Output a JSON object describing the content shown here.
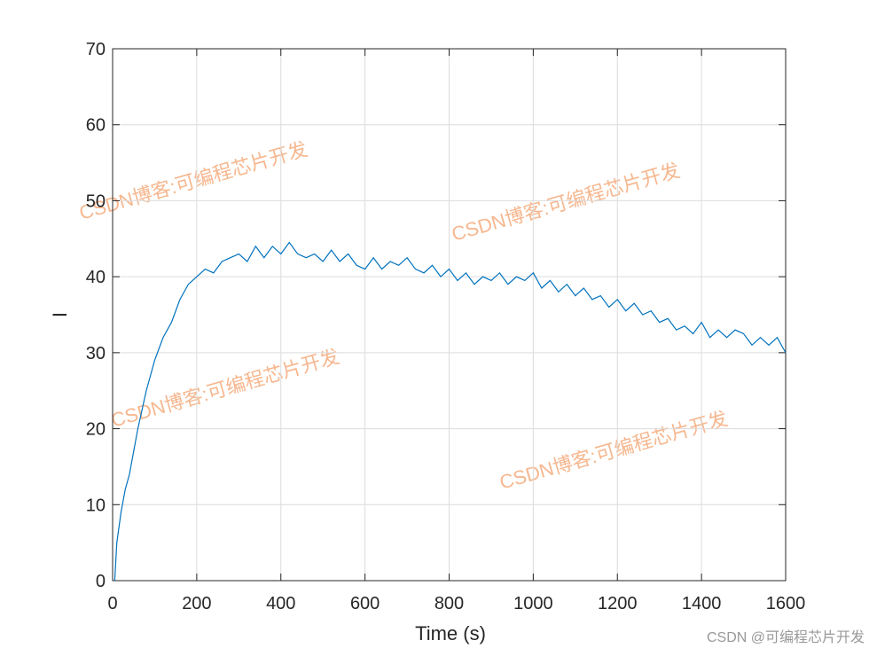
{
  "chart_data": {
    "type": "line",
    "xlabel": "Time (s)",
    "ylabel": "I",
    "x": [
      5,
      10,
      20,
      30,
      40,
      50,
      60,
      80,
      100,
      120,
      140,
      160,
      180,
      200,
      220,
      240,
      260,
      280,
      300,
      320,
      340,
      360,
      380,
      400,
      420,
      440,
      460,
      480,
      500,
      520,
      540,
      560,
      580,
      600,
      620,
      640,
      660,
      680,
      700,
      720,
      740,
      760,
      780,
      800,
      820,
      840,
      860,
      880,
      900,
      920,
      940,
      960,
      980,
      1000,
      1020,
      1040,
      1060,
      1080,
      1100,
      1120,
      1140,
      1160,
      1180,
      1200,
      1220,
      1240,
      1260,
      1280,
      1300,
      1320,
      1340,
      1360,
      1380,
      1400,
      1420,
      1440,
      1460,
      1480,
      1500,
      1520,
      1540,
      1560,
      1580,
      1600
    ],
    "series": [
      {
        "color": "#0072bd",
        "values": [
          0,
          5,
          9,
          12,
          14,
          17,
          20,
          25,
          29,
          32,
          34,
          37,
          39,
          40,
          41,
          40.5,
          42,
          42.5,
          43,
          42,
          44,
          42.5,
          44,
          43,
          44.5,
          43,
          42.5,
          43,
          42,
          43.5,
          42,
          43,
          41.5,
          41,
          42.5,
          41,
          42,
          41.5,
          42.5,
          41,
          40.5,
          41.5,
          40,
          41,
          39.5,
          40.5,
          39,
          40,
          39.5,
          40.5,
          39,
          40,
          39.5,
          40.5,
          38.5,
          39.5,
          38,
          39,
          37.5,
          38.5,
          37,
          37.5,
          36,
          37,
          35.5,
          36.5,
          35,
          35.5,
          34,
          34.5,
          33,
          33.5,
          32.5,
          34,
          32,
          33,
          32,
          33,
          32.5,
          31,
          32,
          31,
          32,
          30
        ]
      }
    ],
    "xlim": [
      0,
      1600
    ],
    "xticks": [
      0,
      200,
      400,
      600,
      800,
      1000,
      1200,
      1400,
      1600
    ],
    "ylim": [
      0,
      70
    ],
    "yticks": [
      0,
      10,
      20,
      30,
      40,
      50,
      60,
      70
    ],
    "grid": true,
    "watermark": "CSDN博客:可编程芯片开发",
    "credit": "CSDN @可编程芯片开发"
  }
}
